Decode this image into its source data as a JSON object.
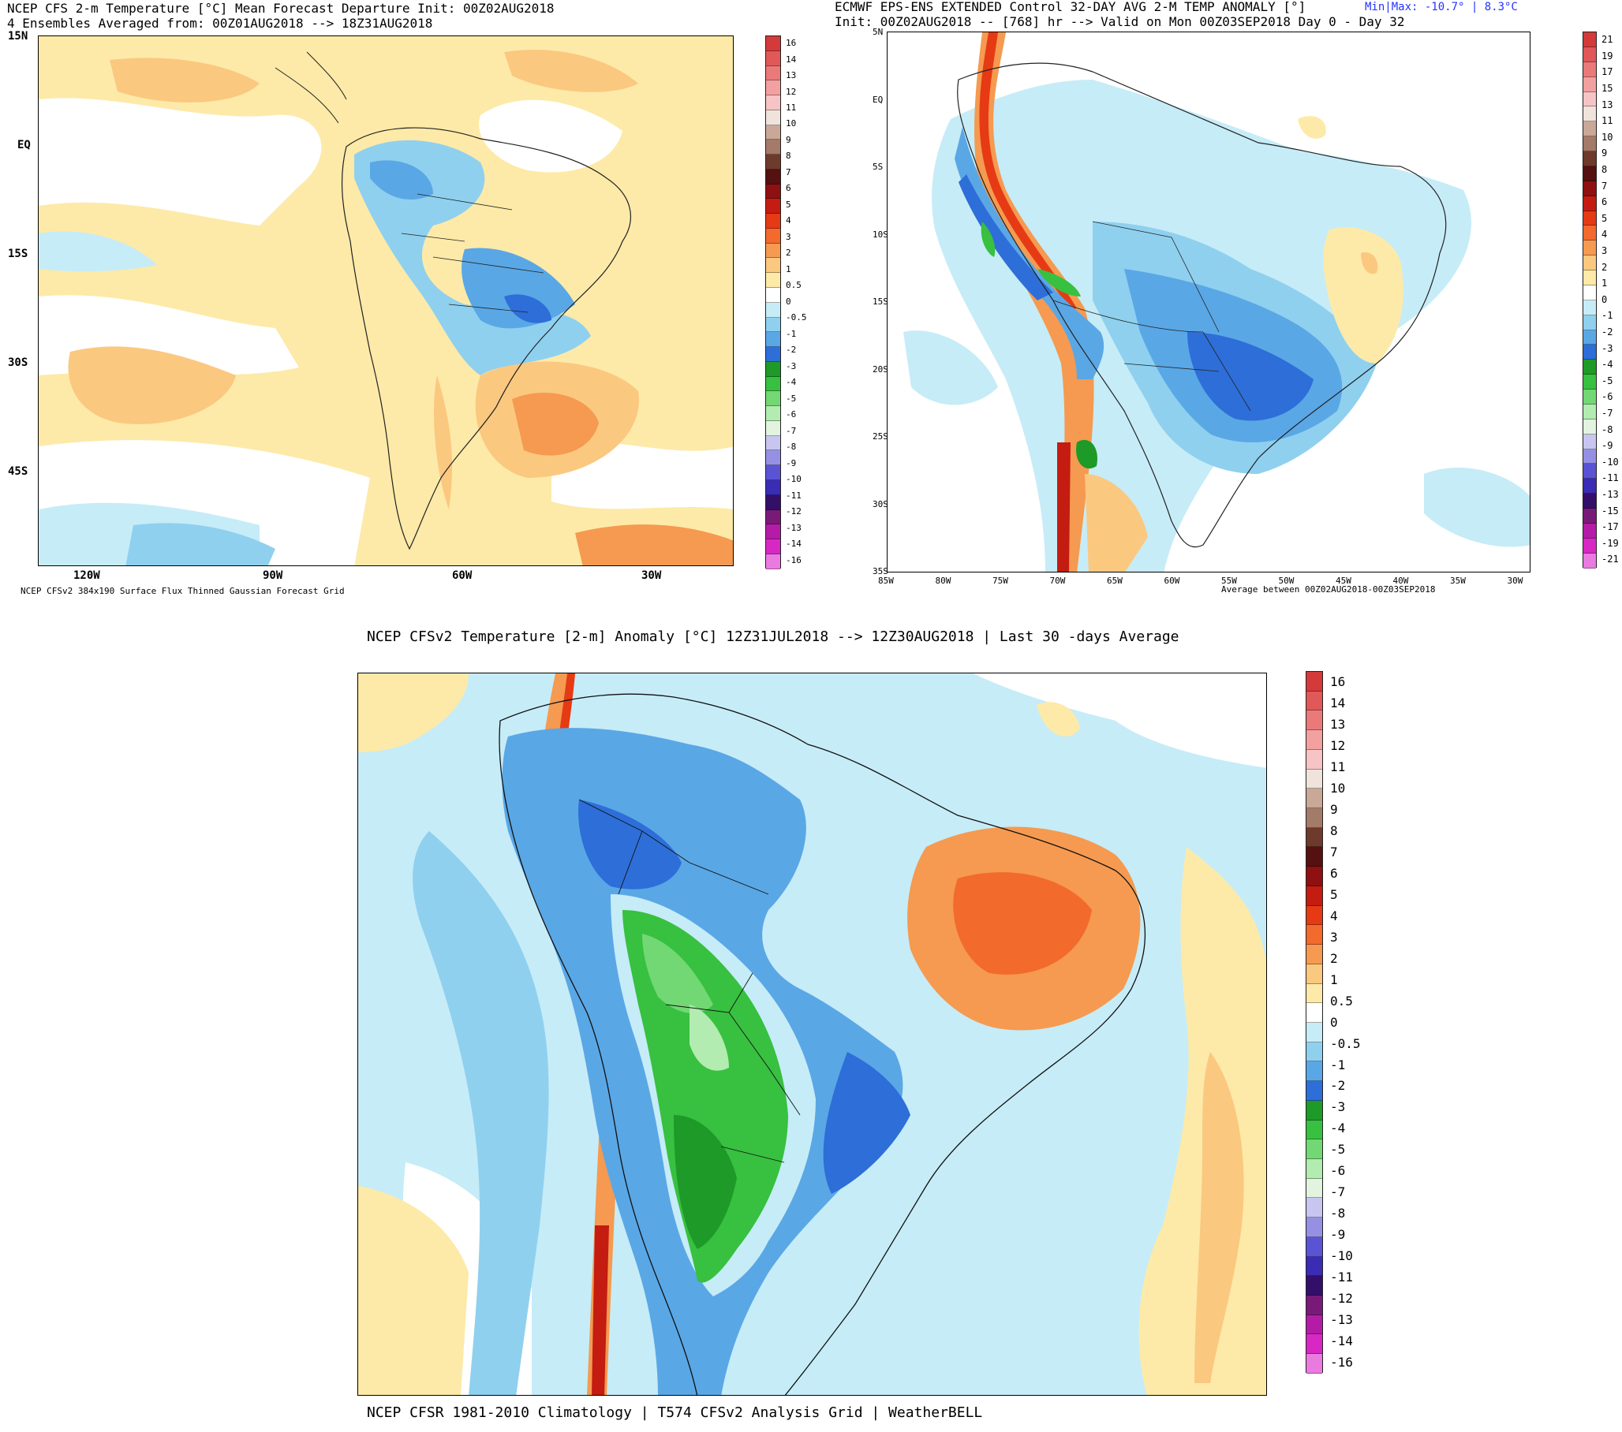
{
  "panel1": {
    "title_line1": "NCEP CFS 2-m Temperature [°C] Mean Forecast Departure Init: 00Z02AUG2018",
    "title_line2": "4 Ensembles Averaged from: 00Z01AUG2018 --> 18Z31AUG2018",
    "footer": "NCEP CFSv2 384x190 Surface Flux Thinned Gaussian Forecast Grid",
    "lat_labels": [
      "15N",
      "EQ",
      "15S",
      "30S",
      "45S"
    ],
    "lon_labels": [
      "120W",
      "90W",
      "60W",
      "30W"
    ],
    "colorbar_labels": [
      "16",
      "14",
      "13",
      "12",
      "11",
      "10",
      "9",
      "8",
      "7",
      "6",
      "5",
      "4",
      "3",
      "2",
      "1",
      "0.5",
      "0",
      "-0.5",
      "-1",
      "-2",
      "-3",
      "-4",
      "-5",
      "-6",
      "-7",
      "-8",
      "-9",
      "-10",
      "-11",
      "-12",
      "-13",
      "-14",
      "-16"
    ]
  },
  "panel2": {
    "title_line1": "ECMWF EPS-ENS EXTENDED Control 32-DAY AVG 2-M TEMP ANOMALY [°]",
    "minmax": "Min|Max: -10.7° | 8.3°C",
    "title_line2": "Init: 00Z02AUG2018 -- [768] hr --> Valid on Mon 00Z03SEP2018  Day 0 - Day 32",
    "footer": "Average between 00Z02AUG2018-00Z03SEP2018",
    "lat_labels": [
      "5N",
      "EQ",
      "5S",
      "10S",
      "15S",
      "20S",
      "25S",
      "30S",
      "35S"
    ],
    "lon_labels": [
      "85W",
      "80W",
      "75W",
      "70W",
      "65W",
      "60W",
      "55W",
      "50W",
      "45W",
      "40W",
      "35W",
      "30W"
    ],
    "colorbar_labels": [
      "21",
      "19",
      "17",
      "15",
      "13",
      "11",
      "10",
      "9",
      "8",
      "7",
      "6",
      "5",
      "4",
      "3",
      "2",
      "1",
      "0",
      "-1",
      "-2",
      "-3",
      "-4",
      "-5",
      "-6",
      "-7",
      "-8",
      "-9",
      "-10",
      "-11",
      "-13",
      "-15",
      "-17",
      "-19",
      "-21"
    ]
  },
  "panel3": {
    "title": "NCEP CFSv2 Temperature [2-m] Anomaly  [°C] 12Z31JUL2018 --> 12Z30AUG2018 | Last 30 -days Average",
    "footer": "NCEP CFSR 1981-2010 Climatology | T574 CFSv2 Analysis Grid | WeatherBELL",
    "colorbar_labels": [
      "16",
      "14",
      "13",
      "12",
      "11",
      "10",
      "9",
      "8",
      "7",
      "6",
      "5",
      "4",
      "3",
      "2",
      "1",
      "0.5",
      "0",
      "-0.5",
      "-1",
      "-2",
      "-3",
      "-4",
      "-5",
      "-6",
      "-7",
      "-8",
      "-9",
      "-10",
      "-11",
      "-12",
      "-13",
      "-14",
      "-16"
    ]
  },
  "palette": [
    "#d43a3a",
    "#e05858",
    "#ea7a7a",
    "#f3a0a0",
    "#f6c4c4",
    "#efe3dc",
    "#c9a898",
    "#a47a68",
    "#6e3a2c",
    "#551010",
    "#8e1010",
    "#c41c10",
    "#e63a14",
    "#f26a2c",
    "#f59a50",
    "#fbc880",
    "#fdeaa8",
    "#ffffff",
    "#c6ecf7",
    "#8fd0ef",
    "#5aa7e6",
    "#2e6ed8",
    "#1e9a28",
    "#38c040",
    "#72d874",
    "#b2ecb0",
    "#e2f3e0",
    "#c8c6f0",
    "#9690e4",
    "#5a54d4",
    "#3a2cb4",
    "#340f6a",
    "#7a1a78",
    "#b41ca8",
    "#d828c4",
    "#ea7ae0"
  ]
}
